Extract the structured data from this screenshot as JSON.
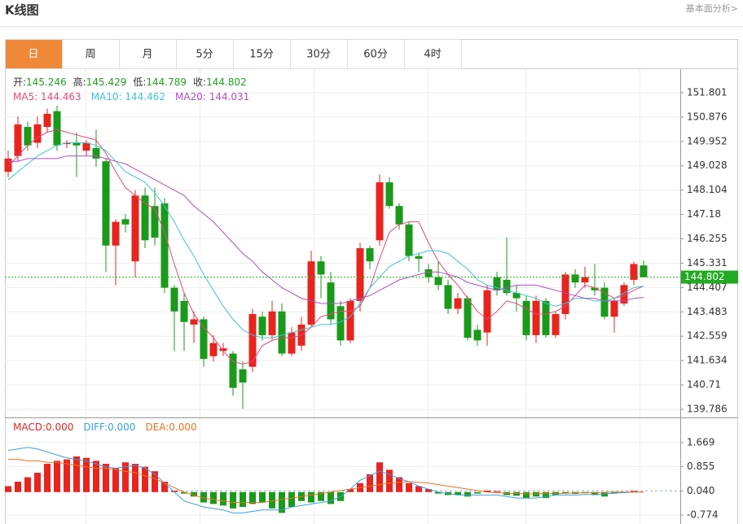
{
  "header": {
    "title": "K线图",
    "link": "基本面分析>"
  },
  "tabs": [
    "日",
    "周",
    "月",
    "5分",
    "15分",
    "30分",
    "60分",
    "4时"
  ],
  "active_tab": 0,
  "chart_data": [
    {
      "type": "candlestick",
      "info": [
        {
          "label": "开:",
          "value": "145.246"
        },
        {
          "label": "高:",
          "value": "145.429"
        },
        {
          "label": "低:",
          "value": "144.789"
        },
        {
          "label": "收:",
          "value": "144.802"
        }
      ],
      "up_color": "#e8241f",
      "down_color": "#1a9a1a",
      "last_color": "#22aa22",
      "ylim": [
        139.478,
        152.694
      ],
      "yticks": [
        151.801,
        150.876,
        149.952,
        149.028,
        148.104,
        147.18,
        146.255,
        145.331,
        144.407,
        143.483,
        142.559,
        141.634,
        140.71,
        139.786
      ],
      "grid": true,
      "candles": {
        "open": [
          148.8,
          149.4,
          150.5,
          149.9,
          150.5,
          151.1,
          149.85,
          149.9,
          149.6,
          149.7,
          149.2,
          146.0,
          147.0,
          145.4,
          147.9,
          147.5,
          147.6,
          144.4,
          143.9,
          143.0,
          143.2,
          141.8,
          142.0,
          141.9,
          141.3,
          141.4,
          143.3,
          142.6,
          143.5,
          141.9,
          142.2,
          143.0,
          145.4,
          144.6,
          143.7,
          142.4,
          143.9,
          145.9,
          146.2,
          148.4,
          147.5,
          146.8,
          145.6,
          145.1,
          144.8,
          144.5,
          143.6,
          144.0,
          142.8,
          142.7,
          144.8,
          144.7,
          144.2,
          143.9,
          142.6,
          143.9,
          142.6,
          143.4,
          144.9,
          144.6,
          144.4,
          144.4,
          143.3,
          143.8,
          144.7,
          145.246
        ],
        "high": [
          149.6,
          150.9,
          150.7,
          150.9,
          151.2,
          151.3,
          150.0,
          150.3,
          150.0,
          150.4,
          149.3,
          147.0,
          147.2,
          148.1,
          148.2,
          148.2,
          147.8,
          144.5,
          144.2,
          143.5,
          143.3,
          142.6,
          142.3,
          142.0,
          141.6,
          143.6,
          143.5,
          143.9,
          143.8,
          142.9,
          143.3,
          145.8,
          145.6,
          145.0,
          143.9,
          144.0,
          146.1,
          146.0,
          148.7,
          148.6,
          147.6,
          146.9,
          145.7,
          145.3,
          145.4,
          144.7,
          144.2,
          144.1,
          143.0,
          144.5,
          145.0,
          146.3,
          144.5,
          144.1,
          144.1,
          144.0,
          143.5,
          145.0,
          145.1,
          145.2,
          145.3,
          144.6,
          144.0,
          144.6,
          145.4,
          145.429
        ],
        "low": [
          148.6,
          149.2,
          149.6,
          149.7,
          150.3,
          149.6,
          149.7,
          148.6,
          149.4,
          149.0,
          145.0,
          144.5,
          146.5,
          144.8,
          145.9,
          146.0,
          144.2,
          142.0,
          142.0,
          142.3,
          141.4,
          141.6,
          141.8,
          140.3,
          139.8,
          141.2,
          142.4,
          142.4,
          141.8,
          141.8,
          142.0,
          142.9,
          144.0,
          143.0,
          142.2,
          142.3,
          143.5,
          145.1,
          146.0,
          147.4,
          146.6,
          145.4,
          145.0,
          144.6,
          144.3,
          143.4,
          143.4,
          142.4,
          142.2,
          142.2,
          144.1,
          144.1,
          143.5,
          142.4,
          142.3,
          142.5,
          142.5,
          143.2,
          144.4,
          144.4,
          144.1,
          143.2,
          142.7,
          143.7,
          144.5,
          144.789
        ],
        "close": [
          149.3,
          150.6,
          149.8,
          150.6,
          151.0,
          149.8,
          149.9,
          149.8,
          149.9,
          149.3,
          146.0,
          146.9,
          146.8,
          147.9,
          146.2,
          146.3,
          144.4,
          143.5,
          143.1,
          143.2,
          141.7,
          142.3,
          142.1,
          140.6,
          140.8,
          143.4,
          142.6,
          143.5,
          141.9,
          142.7,
          143.0,
          145.4,
          144.9,
          143.2,
          142.4,
          143.9,
          145.9,
          145.4,
          148.4,
          147.5,
          146.8,
          145.6,
          145.5,
          144.8,
          144.5,
          143.6,
          144.0,
          142.5,
          142.4,
          144.3,
          144.3,
          144.2,
          144.0,
          142.6,
          143.9,
          142.6,
          143.4,
          144.9,
          144.6,
          144.8,
          144.3,
          143.3,
          143.9,
          144.5,
          145.3,
          144.802
        ]
      },
      "series": [
        {
          "name": "MA5: 144.463",
          "color": "#e8477a",
          "values": [
            149.0,
            149.4,
            149.8,
            150.1,
            150.3,
            150.4,
            150.3,
            150.2,
            150.1,
            150.0,
            149.5,
            148.8,
            148.2,
            147.9,
            147.6,
            147.4,
            146.5,
            145.3,
            144.2,
            143.4,
            142.9,
            142.5,
            142.0,
            141.6,
            141.5,
            141.6,
            142.2,
            142.4,
            142.5,
            142.5,
            142.6,
            142.9,
            143.3,
            143.4,
            143.5,
            143.5,
            143.7,
            144.4,
            145.5,
            146.5,
            146.8,
            146.9,
            146.9,
            146.1,
            145.4,
            144.9,
            144.5,
            144.0,
            143.5,
            143.2,
            143.5,
            143.9,
            143.8,
            143.6,
            143.4,
            143.4,
            143.5,
            143.7,
            144.1,
            144.5,
            144.4,
            144.2,
            144.0,
            144.1,
            144.3,
            144.463
          ]
        },
        {
          "name": "MA10: 144.462",
          "color": "#3cc4d6",
          "values": [
            148.5,
            148.8,
            149.1,
            149.4,
            149.6,
            149.8,
            149.9,
            149.9,
            149.9,
            149.8,
            149.6,
            149.2,
            148.8,
            148.6,
            148.4,
            148.0,
            147.5,
            146.9,
            146.2,
            145.6,
            144.9,
            144.3,
            143.7,
            143.2,
            142.8,
            142.6,
            142.5,
            142.5,
            142.6,
            142.7,
            142.8,
            142.9,
            143.0,
            143.0,
            143.1,
            143.3,
            143.8,
            144.4,
            144.8,
            145.2,
            145.4,
            145.6,
            145.7,
            145.8,
            145.8,
            145.7,
            145.4,
            145.1,
            144.7,
            144.5,
            144.4,
            144.3,
            144.2,
            144.1,
            144.0,
            143.8,
            143.7,
            143.8,
            144.0,
            144.0,
            143.9,
            143.9,
            144.0,
            144.2,
            144.4,
            144.462
          ]
        },
        {
          "name": "MA20: 144.031",
          "color": "#b04fc0",
          "values": [
            149.2,
            149.2,
            149.3,
            149.3,
            149.3,
            149.3,
            149.4,
            149.4,
            149.4,
            149.4,
            149.3,
            149.2,
            149.1,
            148.9,
            148.7,
            148.5,
            148.3,
            148.1,
            147.9,
            147.5,
            147.2,
            146.9,
            146.5,
            146.1,
            145.7,
            145.4,
            145.0,
            144.7,
            144.4,
            144.2,
            144.0,
            143.9,
            143.8,
            143.8,
            143.8,
            143.9,
            144.0,
            144.1,
            144.3,
            144.5,
            144.7,
            144.8,
            144.9,
            145.0,
            145.0,
            144.9,
            144.8,
            144.6,
            144.5,
            144.4,
            144.3,
            144.4,
            144.5,
            144.5,
            144.5,
            144.4,
            144.3,
            144.2,
            144.1,
            144.0,
            144.0,
            143.9,
            143.9,
            143.9,
            144.0,
            144.031
          ]
        }
      ]
    },
    {
      "type": "macd",
      "ylim": [
        -1.073,
        2.483
      ],
      "yticks": [
        1.669,
        0.855,
        {
          "value": 0.04,
          "label": "0.040"
        },
        -0.774
      ],
      "grid": true,
      "up_color": "#e8241f",
      "down_color": "#1a9a1a",
      "histogram": {
        "name": "MACD:0.000",
        "color": "#e8241f",
        "values": [
          0.2,
          0.35,
          0.5,
          0.65,
          0.95,
          1.05,
          1.1,
          1.2,
          1.15,
          1.05,
          0.95,
          0.8,
          1.0,
          0.95,
          0.85,
          0.7,
          0.35,
          0.05,
          -0.05,
          -0.15,
          -0.35,
          -0.4,
          -0.45,
          -0.55,
          -0.5,
          -0.4,
          -0.35,
          -0.55,
          -0.7,
          -0.5,
          -0.3,
          -0.35,
          -0.3,
          -0.4,
          -0.3,
          0.1,
          0.3,
          0.6,
          1.0,
          0.75,
          0.5,
          0.3,
          0.2,
          0.1,
          -0.05,
          -0.1,
          -0.1,
          -0.15,
          -0.05,
          0.05,
          0.03,
          -0.1,
          -0.12,
          -0.2,
          -0.15,
          -0.2,
          -0.1,
          -0.05,
          -0.06,
          -0.04,
          -0.1,
          -0.15,
          -0.05,
          -0.02,
          0.04,
          0
        ]
      },
      "series": [
        {
          "name": "DIFF:0.000",
          "color": "#3a9fe6",
          "values": [
            1.4,
            1.45,
            1.5,
            1.45,
            1.35,
            1.25,
            1.15,
            1.1,
            1.05,
            0.95,
            0.85,
            0.8,
            0.85,
            0.9,
            0.8,
            0.6,
            0.3,
            0.0,
            -0.3,
            -0.4,
            -0.5,
            -0.55,
            -0.6,
            -0.7,
            -0.7,
            -0.65,
            -0.6,
            -0.6,
            -0.6,
            -0.5,
            -0.45,
            -0.4,
            -0.35,
            -0.3,
            -0.15,
            0.1,
            0.4,
            0.55,
            0.7,
            0.6,
            0.45,
            0.35,
            0.2,
            0.1,
            0.0,
            -0.05,
            -0.1,
            -0.1,
            -0.1,
            -0.1,
            -0.1,
            -0.15,
            -0.2,
            -0.2,
            -0.2,
            -0.15,
            -0.1,
            -0.1,
            -0.1,
            -0.08,
            -0.08,
            -0.06,
            -0.04,
            -0.02,
            0.0,
            0
          ]
        },
        {
          "name": "DEA:0.000",
          "color": "#f07020",
          "values": [
            1.1,
            1.1,
            1.05,
            1.05,
            1.0,
            1.0,
            0.95,
            0.9,
            0.85,
            0.8,
            0.8,
            0.75,
            0.7,
            0.65,
            0.55,
            0.45,
            0.3,
            0.15,
            0.0,
            -0.1,
            -0.2,
            -0.25,
            -0.3,
            -0.35,
            -0.35,
            -0.35,
            -0.35,
            -0.3,
            -0.25,
            -0.2,
            -0.15,
            -0.1,
            -0.05,
            0.0,
            0.05,
            0.1,
            0.15,
            0.2,
            0.25,
            0.3,
            0.33,
            0.35,
            0.33,
            0.3,
            0.25,
            0.2,
            0.15,
            0.1,
            0.05,
            0.0,
            -0.02,
            -0.04,
            -0.05,
            -0.06,
            -0.06,
            -0.05,
            -0.05,
            -0.04,
            -0.03,
            -0.02,
            -0.02,
            -0.01,
            0.0,
            0.0,
            0.0,
            0
          ]
        }
      ]
    }
  ]
}
